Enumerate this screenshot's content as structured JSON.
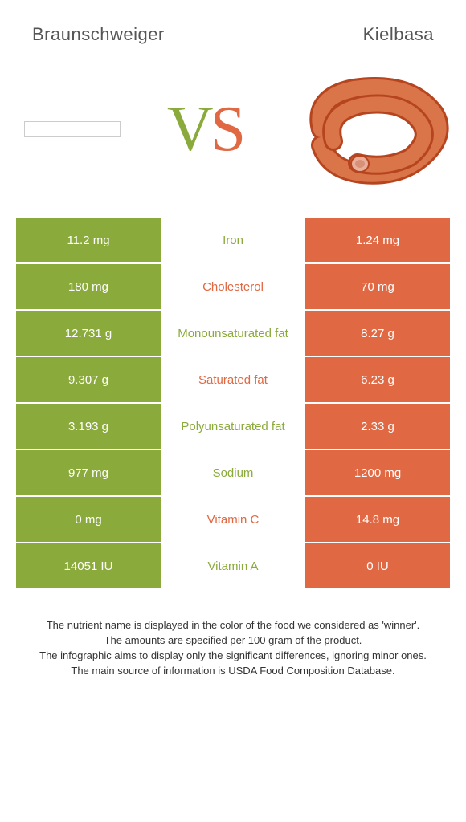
{
  "colors": {
    "green": "#8aaa3b",
    "orange": "#e06843",
    "kielbasa_dark": "#b5441f",
    "kielbasa_light": "#d97548",
    "kielbasa_inner": "#e8b09a"
  },
  "header": {
    "left": "Braunschweiger",
    "right": "Kielbasa"
  },
  "vs": {
    "v": "V",
    "s": "S"
  },
  "rows": [
    {
      "left": "11.2 mg",
      "label": "Iron",
      "right": "1.24 mg",
      "winner": "left"
    },
    {
      "left": "180 mg",
      "label": "Cholesterol",
      "right": "70 mg",
      "winner": "right"
    },
    {
      "left": "12.731 g",
      "label": "Monounsaturated fat",
      "right": "8.27 g",
      "winner": "left"
    },
    {
      "left": "9.307 g",
      "label": "Saturated fat",
      "right": "6.23 g",
      "winner": "right"
    },
    {
      "left": "3.193 g",
      "label": "Polyunsaturated fat",
      "right": "2.33 g",
      "winner": "left"
    },
    {
      "left": "977 mg",
      "label": "Sodium",
      "right": "1200 mg",
      "winner": "left"
    },
    {
      "left": "0 mg",
      "label": "Vitamin C",
      "right": "14.8 mg",
      "winner": "right"
    },
    {
      "left": "14051 IU",
      "label": "Vitamin A",
      "right": "0 IU",
      "winner": "left"
    }
  ],
  "footer": {
    "line1": "The nutrient name is displayed in the color of the food we considered as 'winner'.",
    "line2": "The amounts are specified per 100 gram of the product.",
    "line3": "The infographic aims to display only the significant differences, ignoring minor ones.",
    "line4": "The main source of information is USDA Food Composition Database."
  }
}
